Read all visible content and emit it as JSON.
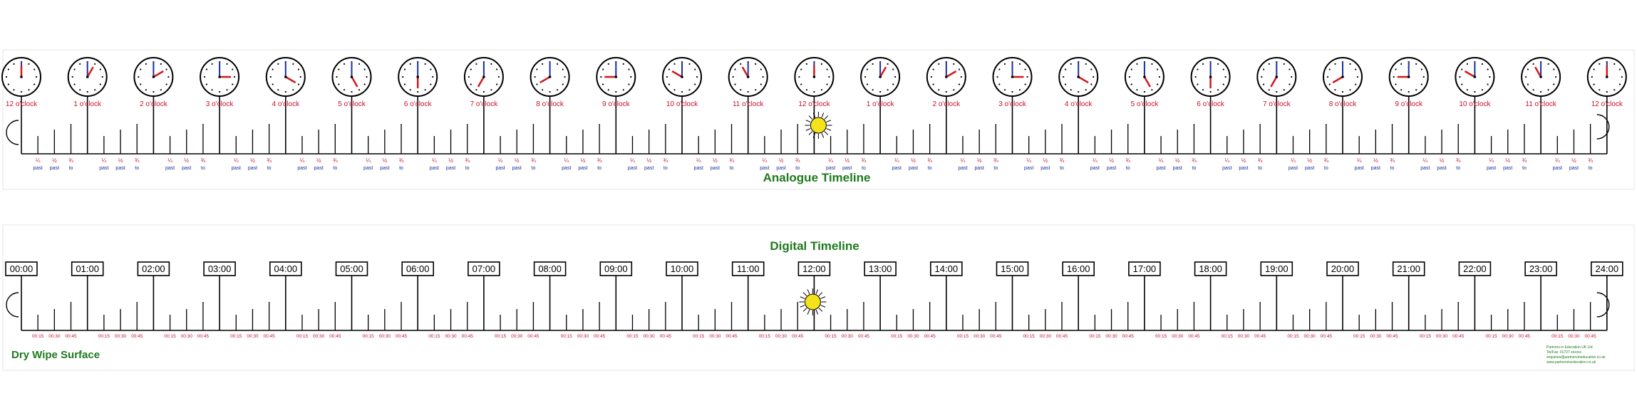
{
  "analogue": {
    "title": "Analogue Timeline",
    "hour_labels": [
      "12 o'clock",
      "1 o'clock",
      "2 o'clock",
      "3 o'clock",
      "4 o'clock",
      "5 o'clock",
      "6 o'clock",
      "7 o'clock",
      "8 o'clock",
      "9 o'clock",
      "10 o'clock",
      "11 o'clock",
      "12 o'clock",
      "1 o'clock",
      "2 o'clock",
      "3 o'clock",
      "4 o'clock",
      "5 o'clock",
      "6 o'clock",
      "7 o'clock",
      "8 o'clock",
      "9 o'clock",
      "10 o'clock",
      "11 o'clock",
      "12 o'clock"
    ],
    "clock_hours": [
      12,
      1,
      2,
      3,
      4,
      5,
      6,
      7,
      8,
      9,
      10,
      11,
      12,
      1,
      2,
      3,
      4,
      5,
      6,
      7,
      8,
      9,
      10,
      11,
      12
    ],
    "fractions": [
      "¼",
      "½",
      "¾"
    ],
    "sub_labels": [
      "past",
      "past",
      "to"
    ],
    "label_color": "#c8102e",
    "sub_label_color": "#1a2fa0"
  },
  "digital": {
    "title": "Digital Timeline",
    "hour_labels": [
      "00:00",
      "01:00",
      "02:00",
      "03:00",
      "04:00",
      "05:00",
      "06:00",
      "07:00",
      "08:00",
      "09:00",
      "10:00",
      "11:00",
      "12:00",
      "13:00",
      "14:00",
      "15:00",
      "16:00",
      "17:00",
      "18:00",
      "19:00",
      "20:00",
      "21:00",
      "22:00",
      "23:00",
      "24:00"
    ],
    "quarter_labels": [
      "00:15",
      "00:30",
      "00:45"
    ],
    "quarter_color": "#c8102e"
  },
  "footer": {
    "surface_label": "Dry Wipe Surface",
    "publisher_lines": [
      "Partners in Education UK Ltd",
      "Tel/Fax: 01727 xxxxxx",
      "enquiries@partnersineducation.co.uk",
      "www.partnersineducation.co.uk"
    ]
  },
  "colors": {
    "title_green": "#1e7a1e",
    "line": "#000000",
    "sun": "#f4e21a",
    "clock_red": "#d11a1a",
    "clock_blue": "#1a2fa0"
  },
  "icons": {
    "night": "moon-icon",
    "midday": "sun-icon"
  }
}
